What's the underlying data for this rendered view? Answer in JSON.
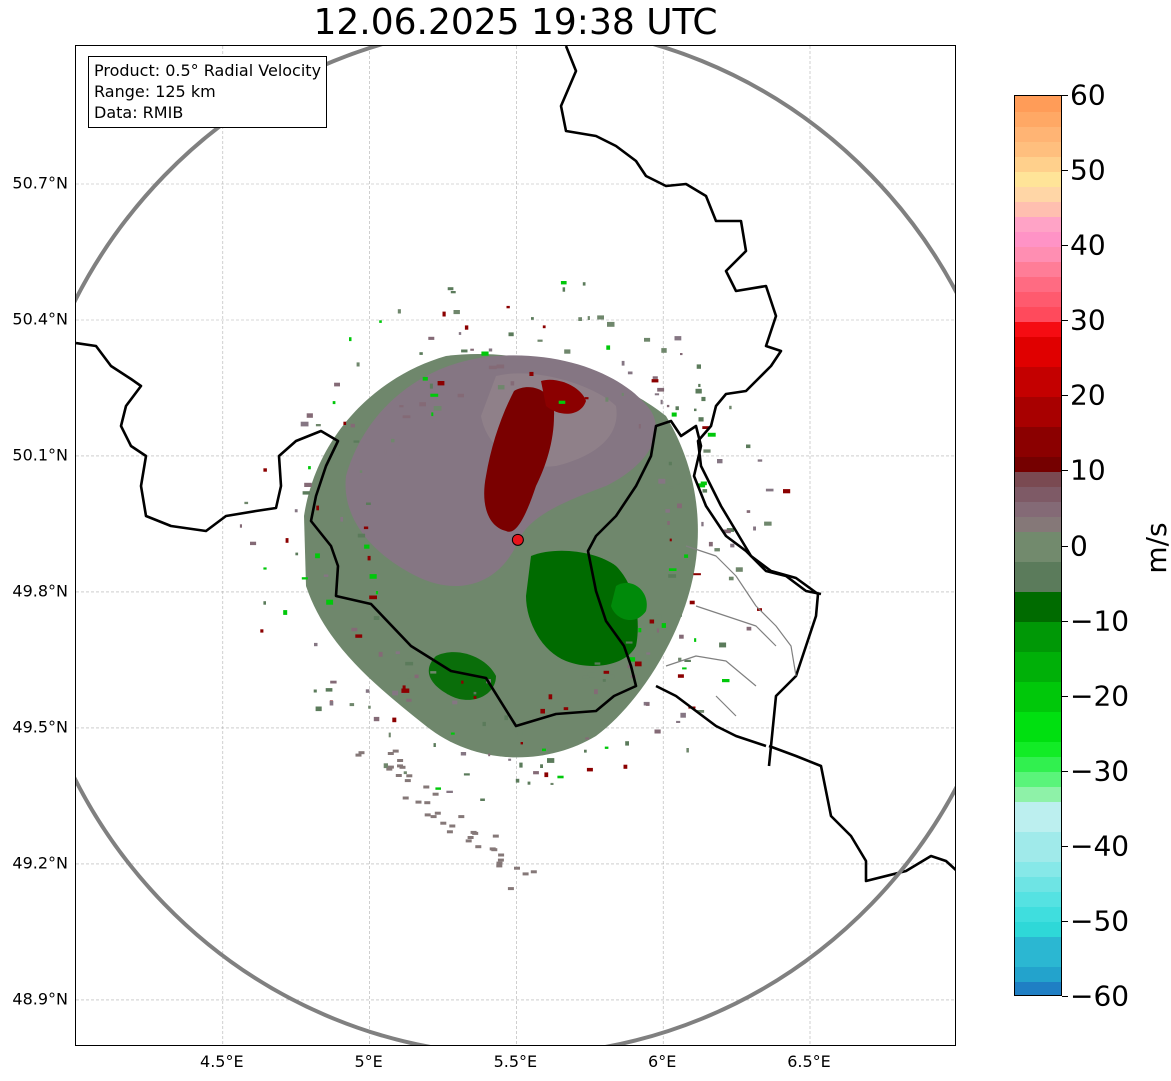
{
  "title": "12.06.2025 19:38 UTC",
  "info_box": {
    "product": "Product: 0.5° Radial Velocity",
    "range": "Range: 125 km",
    "source": "Data: RMIB"
  },
  "map": {
    "lon_range": [
      4.0,
      7.0
    ],
    "lat_range": [
      48.8,
      50.98
    ],
    "lat_ticks": [
      {
        "value": 50.7,
        "label": "50.7°N"
      },
      {
        "value": 50.4,
        "label": "50.4°N"
      },
      {
        "value": 50.1,
        "label": "50.1°N"
      },
      {
        "value": 49.8,
        "label": "49.8°N"
      },
      {
        "value": 49.5,
        "label": "49.5°N"
      },
      {
        "value": 49.2,
        "label": "49.2°N"
      },
      {
        "value": 48.9,
        "label": "48.9°N"
      }
    ],
    "lon_ticks": [
      {
        "value": 4.5,
        "label": "4.5°E"
      },
      {
        "value": 5.0,
        "label": "5°E"
      },
      {
        "value": 5.5,
        "label": "5.5°E"
      },
      {
        "value": 6.0,
        "label": "6°E"
      },
      {
        "value": 6.5,
        "label": "6.5°E"
      }
    ],
    "grid": true,
    "radar_site": {
      "lon": 5.505,
      "lat": 49.915
    },
    "range_ring_color": "#808080",
    "border_color": "#000000",
    "admin_border_color": "#808080"
  },
  "colorbar": {
    "unit": "m/s",
    "min": -60,
    "max": 60,
    "ticks": [
      {
        "value": 60,
        "label": "60"
      },
      {
        "value": 50,
        "label": "50"
      },
      {
        "value": 40,
        "label": "40"
      },
      {
        "value": 30,
        "label": "30"
      },
      {
        "value": 20,
        "label": "20"
      },
      {
        "value": 10,
        "label": "10"
      },
      {
        "value": 0,
        "label": "0"
      },
      {
        "value": -10,
        "label": "−10"
      },
      {
        "value": -20,
        "label": "−20"
      },
      {
        "value": -30,
        "label": "−30"
      },
      {
        "value": -40,
        "label": "−40"
      },
      {
        "value": -50,
        "label": "−50"
      },
      {
        "value": -60,
        "label": "−60"
      }
    ],
    "stops": [
      {
        "from": -60,
        "to": -58,
        "color": "#1f7fc4"
      },
      {
        "from": -58,
        "to": -56,
        "color": "#23a3cc"
      },
      {
        "from": -56,
        "to": -52,
        "color": "#2bb7d2"
      },
      {
        "from": -52,
        "to": -50,
        "color": "#2ed8d8"
      },
      {
        "from": -50,
        "to": -48,
        "color": "#3fdede"
      },
      {
        "from": -48,
        "to": -46,
        "color": "#55e2e2"
      },
      {
        "from": -46,
        "to": -44,
        "color": "#6ee4e4"
      },
      {
        "from": -44,
        "to": -42,
        "color": "#86e8e8"
      },
      {
        "from": -42,
        "to": -38,
        "color": "#a0eaea"
      },
      {
        "from": -38,
        "to": -34,
        "color": "#bcefef"
      },
      {
        "from": -34,
        "to": -32,
        "color": "#8ef2a8"
      },
      {
        "from": -32,
        "to": -30,
        "color": "#5af47a"
      },
      {
        "from": -30,
        "to": -28,
        "color": "#31f04f"
      },
      {
        "from": -28,
        "to": -26,
        "color": "#12ec26"
      },
      {
        "from": -26,
        "to": -22,
        "color": "#00e010"
      },
      {
        "from": -22,
        "to": -18,
        "color": "#00c80a"
      },
      {
        "from": -18,
        "to": -14,
        "color": "#00b008"
      },
      {
        "from": -14,
        "to": -10,
        "color": "#009806"
      },
      {
        "from": -10,
        "to": -6,
        "color": "#006b00"
      },
      {
        "from": -6,
        "to": -2,
        "color": "#5b7b5b"
      },
      {
        "from": -2,
        "to": 2,
        "color": "#728a6d"
      },
      {
        "from": 2,
        "to": 4,
        "color": "#857878"
      },
      {
        "from": 4,
        "to": 6,
        "color": "#846a76"
      },
      {
        "from": 6,
        "to": 8,
        "color": "#7e5a66"
      },
      {
        "from": 8,
        "to": 10,
        "color": "#7a4a52"
      },
      {
        "from": 10,
        "to": 12,
        "color": "#750000"
      },
      {
        "from": 12,
        "to": 16,
        "color": "#8b0000"
      },
      {
        "from": 16,
        "to": 20,
        "color": "#a80000"
      },
      {
        "from": 20,
        "to": 24,
        "color": "#c40000"
      },
      {
        "from": 24,
        "to": 28,
        "color": "#e00000"
      },
      {
        "from": 28,
        "to": 30,
        "color": "#f50c12"
      },
      {
        "from": 30,
        "to": 32,
        "color": "#ff4a5c"
      },
      {
        "from": 32,
        "to": 34,
        "color": "#ff5a6e"
      },
      {
        "from": 34,
        "to": 36,
        "color": "#ff6b82"
      },
      {
        "from": 36,
        "to": 38,
        "color": "#ff7d97"
      },
      {
        "from": 38,
        "to": 40,
        "color": "#ff8eb2"
      },
      {
        "from": 40,
        "to": 42,
        "color": "#ff93c6"
      },
      {
        "from": 42,
        "to": 44,
        "color": "#ffa3c6"
      },
      {
        "from": 44,
        "to": 46,
        "color": "#ffbfb0"
      },
      {
        "from": 46,
        "to": 48,
        "color": "#ffd6a6"
      },
      {
        "from": 48,
        "to": 50,
        "color": "#ffe498"
      },
      {
        "from": 50,
        "to": 52,
        "color": "#ffd08c"
      },
      {
        "from": 52,
        "to": 54,
        "color": "#ffbf7e"
      },
      {
        "from": 54,
        "to": 56,
        "color": "#ffb474"
      },
      {
        "from": 56,
        "to": 58,
        "color": "#ffa865"
      },
      {
        "from": 58,
        "to": 60,
        "color": "#ff9c58"
      }
    ]
  }
}
